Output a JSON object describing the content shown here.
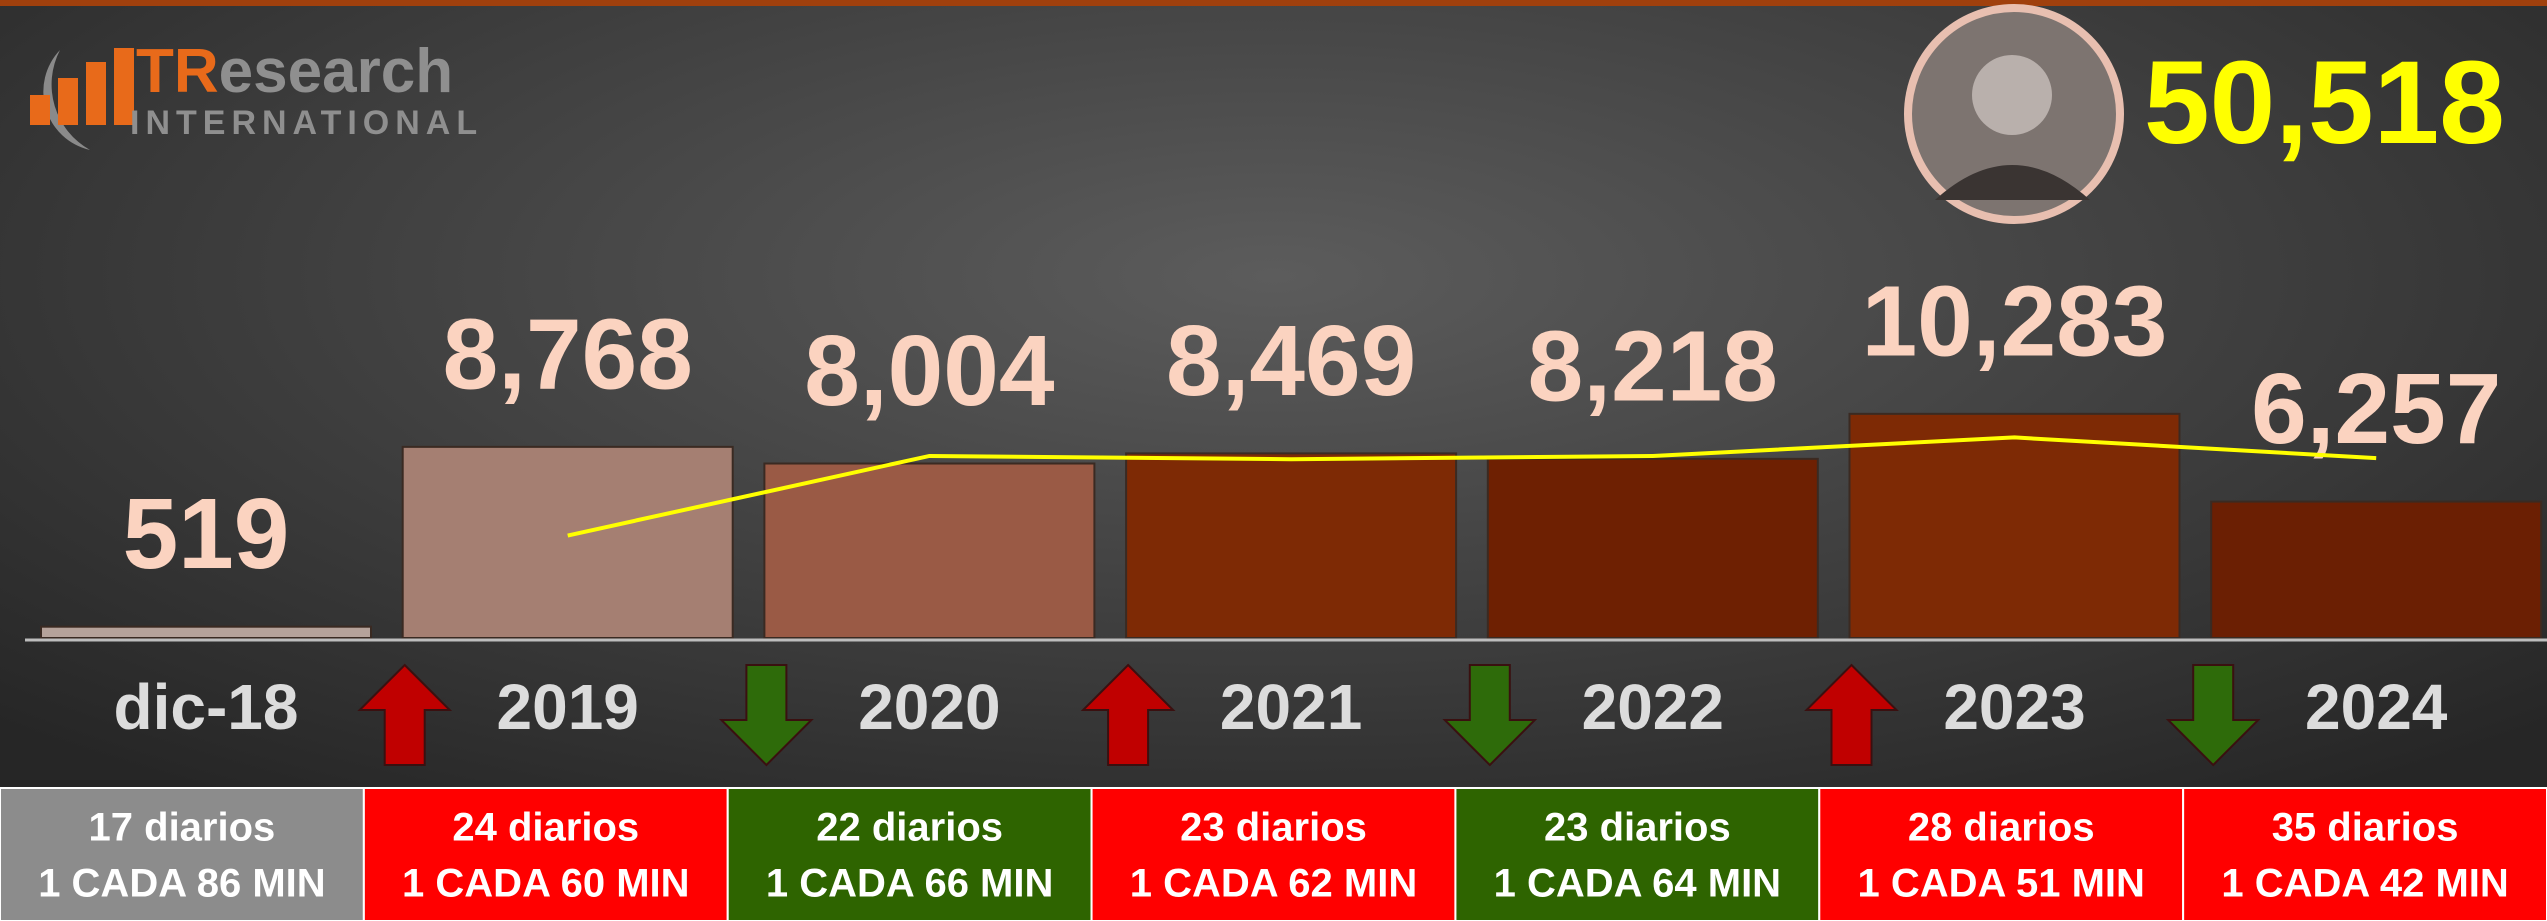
{
  "logo": {
    "name_a": "TR",
    "name_b": "esearch",
    "subtitle": "INTERNATIONAL"
  },
  "total": "50,518",
  "chart_data": {
    "type": "bar",
    "categories": [
      "dic-18",
      "2019",
      "2020",
      "2021",
      "2022",
      "2023",
      "2024"
    ],
    "values": [
      519,
      8768,
      8004,
      8469,
      8218,
      10283,
      6257
    ],
    "value_labels": [
      "519",
      "8,768",
      "8,004",
      "8,469",
      "8,218",
      "10,283",
      "6,257"
    ],
    "colors": [
      "#b5a29a",
      "#a57f72",
      "#9a5a45",
      "#7e2a05",
      "#6e2002",
      "#7e2a05",
      "#6b1f03"
    ],
    "ylim": [
      0,
      25000
    ],
    "line": {
      "color": "#ffff00",
      "values": [
        null,
        4700,
        8350,
        8200,
        8350,
        9200,
        8250
      ]
    }
  },
  "summary": [
    {
      "daily": "17 diarios",
      "rate": "1 CADA 86 MIN",
      "color": "#8c8c8c"
    },
    {
      "daily": "24 diarios",
      "rate": "1 CADA 60 MIN",
      "color": "#ff0000"
    },
    {
      "daily": "22 diarios",
      "rate": "1 CADA 66 MIN",
      "color": "#2e6400"
    },
    {
      "daily": "23 diarios",
      "rate": "1 CADA 62 MIN",
      "color": "#ff0000"
    },
    {
      "daily": "23 diarios",
      "rate": "1 CADA 64 MIN",
      "color": "#2e6400"
    },
    {
      "daily": "28 diarios",
      "rate": "1 CADA 51 MIN",
      "color": "#ff0000"
    },
    {
      "daily": "35 diarios",
      "rate": "1 CADA 42 MIN",
      "color": "#ff0000"
    }
  ]
}
